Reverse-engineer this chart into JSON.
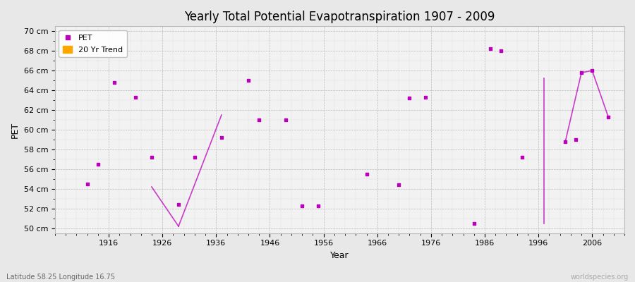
{
  "title": "Yearly Total Potential Evapotranspiration 1907 - 2009",
  "xlabel": "Year",
  "ylabel": "PET",
  "footnote_left": "Latitude 58.25 Longitude 16.75",
  "footnote_right": "worldspecies.org",
  "ylim": [
    49.5,
    70.5
  ],
  "ytick_vals": [
    50,
    52,
    54,
    56,
    58,
    60,
    62,
    64,
    66,
    68,
    70
  ],
  "ytick_labels": [
    "50 cm",
    "52 cm",
    "54 cm",
    "56 cm",
    "58 cm",
    "60 cm",
    "62 cm",
    "64 cm",
    "66 cm",
    "68 cm",
    "70 cm"
  ],
  "xlim": [
    1906,
    2012
  ],
  "xticks": [
    1916,
    1926,
    1936,
    1946,
    1956,
    1966,
    1976,
    1986,
    1996,
    2006
  ],
  "pet_color": "#BB00BB",
  "trend_color": "#FFA500",
  "bg_color": "#E8E8E8",
  "plot_bg_color": "#F2F2F2",
  "pet_data": [
    [
      1912,
      54.5
    ],
    [
      1914,
      56.5
    ],
    [
      1917,
      64.8
    ],
    [
      1921,
      63.3
    ],
    [
      1924,
      57.2
    ],
    [
      1929,
      52.4
    ],
    [
      1932,
      57.2
    ],
    [
      1937,
      59.2
    ],
    [
      1942,
      65.0
    ],
    [
      1944,
      61.0
    ],
    [
      1949,
      61.0
    ],
    [
      1952,
      52.3
    ],
    [
      1955,
      52.3
    ],
    [
      1964,
      55.5
    ],
    [
      1970,
      54.4
    ],
    [
      1972,
      63.2
    ],
    [
      1975,
      63.3
    ],
    [
      1984,
      50.5
    ],
    [
      1987,
      68.2
    ],
    [
      1989,
      68.0
    ],
    [
      1993,
      57.2
    ],
    [
      2001,
      58.8
    ],
    [
      2003,
      59.0
    ],
    [
      2004,
      65.8
    ],
    [
      2006,
      66.0
    ],
    [
      2009,
      61.3
    ]
  ],
  "trend_lines": [
    {
      "x": [
        1924,
        1929
      ],
      "y": [
        54.2,
        50.2
      ]
    },
    {
      "x": [
        1929,
        1937
      ],
      "y": [
        50.2,
        61.5
      ]
    },
    {
      "x": [
        1997,
        1997
      ],
      "y": [
        65.2,
        50.5
      ]
    },
    {
      "x": [
        2001,
        2004
      ],
      "y": [
        58.8,
        65.8
      ]
    },
    {
      "x": [
        2004,
        2006
      ],
      "y": [
        65.8,
        66.0
      ]
    },
    {
      "x": [
        2006,
        2009
      ],
      "y": [
        66.0,
        61.3
      ]
    }
  ]
}
